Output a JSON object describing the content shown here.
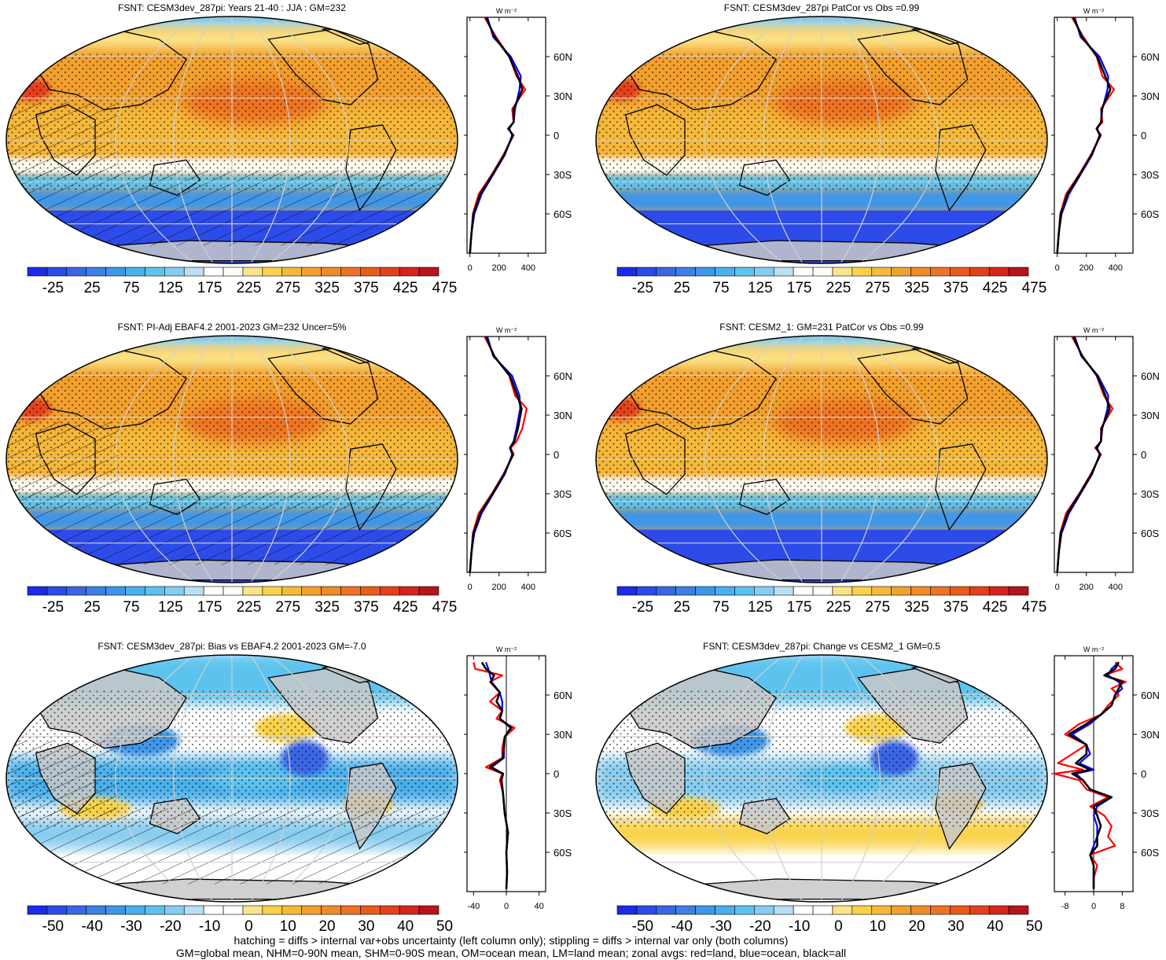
{
  "panels": [
    {
      "title": "FSNT: CESM3dev_287pi: Years 21-40 : JJA : GM=232",
      "kind": "abs",
      "hatch": true,
      "colorbar": {
        "labels": [
          "-25",
          "25",
          "75",
          "125",
          "175",
          "225",
          "275",
          "325",
          "375",
          "425",
          "475"
        ]
      },
      "profile": {
        "xticks": [
          "0",
          "200",
          "400"
        ],
        "xmin": -20,
        "xmax": 520,
        "units": "W m⁻²",
        "lat": [
          90,
          75,
          60,
          45,
          35,
          20,
          10,
          5,
          0,
          -15,
          -30,
          -45,
          -60,
          -75,
          -90
        ],
        "land": [
          100,
          180,
          270,
          320,
          380,
          290,
          300,
          260,
          300,
          230,
          150,
          60,
          20,
          10,
          0
        ],
        "ocean": [
          120,
          160,
          280,
          350,
          340,
          310,
          300,
          270,
          290,
          240,
          160,
          80,
          30,
          10,
          0
        ],
        "all": [
          110,
          170,
          270,
          330,
          360,
          300,
          300,
          265,
          295,
          235,
          155,
          70,
          25,
          10,
          0
        ]
      }
    },
    {
      "title": "FSNT: CESM3dev_287pi PatCor vs Obs =0.99",
      "kind": "abs",
      "hatch": false,
      "colorbar": {
        "labels": [
          "-25",
          "25",
          "75",
          "125",
          "175",
          "225",
          "275",
          "325",
          "375",
          "425",
          "475"
        ]
      },
      "profile": {
        "xticks": [
          "0",
          "200",
          "400"
        ],
        "xmin": -20,
        "xmax": 520,
        "units": "W m⁻²",
        "lat": [
          90,
          75,
          60,
          45,
          35,
          20,
          10,
          5,
          0,
          -15,
          -30,
          -45,
          -60,
          -75,
          -90
        ],
        "land": [
          100,
          180,
          270,
          310,
          390,
          300,
          310,
          270,
          300,
          230,
          150,
          60,
          20,
          10,
          0
        ],
        "ocean": [
          120,
          160,
          290,
          350,
          345,
          310,
          300,
          275,
          290,
          240,
          160,
          80,
          30,
          10,
          0
        ],
        "all": [
          110,
          170,
          275,
          330,
          365,
          305,
          302,
          270,
          295,
          235,
          155,
          70,
          25,
          10,
          0
        ]
      }
    },
    {
      "title": "FSNT: PI-Adj EBAF4.2 2001-2023 GM=232 Uncer=5%",
      "kind": "abs",
      "hatch": true,
      "colorbar": {
        "labels": [
          "-25",
          "25",
          "75",
          "125",
          "175",
          "225",
          "275",
          "325",
          "375",
          "425",
          "475"
        ]
      },
      "profile": {
        "xticks": [
          "0",
          "200",
          "400"
        ],
        "xmin": -20,
        "xmax": 520,
        "units": "W m⁻²",
        "lat": [
          90,
          75,
          60,
          45,
          35,
          20,
          10,
          5,
          0,
          -15,
          -30,
          -45,
          -60,
          -75,
          -90
        ],
        "land": [
          100,
          170,
          270,
          310,
          390,
          360,
          320,
          280,
          300,
          230,
          150,
          60,
          20,
          10,
          0
        ],
        "ocean": [
          120,
          160,
          290,
          340,
          345,
          320,
          300,
          275,
          290,
          240,
          160,
          80,
          30,
          10,
          0
        ],
        "all": [
          110,
          165,
          275,
          325,
          355,
          330,
          305,
          275,
          295,
          235,
          155,
          70,
          25,
          10,
          0
        ]
      }
    },
    {
      "title": "FSNT: CESM2_1: GM=231 PatCor vs Obs =0.99",
      "kind": "abs",
      "hatch": false,
      "colorbar": {
        "labels": [
          "-25",
          "25",
          "75",
          "125",
          "175",
          "225",
          "275",
          "325",
          "375",
          "425",
          "475"
        ]
      },
      "profile": {
        "xticks": [
          "0",
          "200",
          "400"
        ],
        "xmin": -20,
        "xmax": 520,
        "units": "W m⁻²",
        "lat": [
          90,
          75,
          60,
          45,
          35,
          20,
          10,
          5,
          0,
          -15,
          -30,
          -45,
          -60,
          -75,
          -90
        ],
        "land": [
          100,
          175,
          270,
          320,
          380,
          300,
          300,
          260,
          300,
          230,
          150,
          60,
          20,
          10,
          0
        ],
        "ocean": [
          120,
          165,
          280,
          350,
          345,
          310,
          300,
          275,
          290,
          240,
          160,
          80,
          30,
          10,
          0
        ],
        "all": [
          110,
          170,
          275,
          330,
          360,
          305,
          300,
          268,
          295,
          235,
          155,
          70,
          25,
          10,
          0
        ]
      }
    },
    {
      "title": "FSNT: CESM3dev_287pi: Bias vs EBAF4.2 2001-2023 GM=-7.0",
      "kind": "diff",
      "hatch": true,
      "colorbar": {
        "labels": [
          "-50",
          "-40",
          "-30",
          "-20",
          "-10",
          "0",
          "10",
          "20",
          "30",
          "40",
          "50"
        ]
      },
      "profile": {
        "xticks": [
          "-40",
          "0",
          "40"
        ],
        "xmin": -48,
        "xmax": 48,
        "units": "W m⁻²",
        "lat": [
          85,
          80,
          75,
          70,
          62,
          55,
          48,
          42,
          35,
          28,
          20,
          12,
          5,
          0,
          -5,
          -15,
          -30,
          -45,
          -60,
          -75,
          -88
        ],
        "land": [
          -40,
          -38,
          -5,
          -20,
          -8,
          -20,
          -5,
          -12,
          10,
          -2,
          -5,
          -5,
          -25,
          -5,
          -8,
          -4,
          -2,
          2,
          0,
          1,
          0
        ],
        "ocean": [
          -25,
          -22,
          -20,
          -18,
          -8,
          -5,
          -5,
          -8,
          5,
          -2,
          -3,
          -3,
          -18,
          -4,
          -6,
          -4,
          -2,
          2,
          0,
          1,
          0
        ],
        "all": [
          -30,
          -25,
          -15,
          -19,
          -8,
          -12,
          -5,
          -8,
          6,
          -2,
          -3,
          -4,
          -20,
          -4,
          -6,
          -4,
          -2,
          2,
          0,
          1,
          0
        ]
      }
    },
    {
      "title": "FSNT: CESM3dev_287pi: Change vs CESM2_1 GM=0.5",
      "kind": "diff",
      "hatch": false,
      "colorbar": {
        "labels": [
          "-50",
          "-40",
          "-30",
          "-20",
          "-10",
          "0",
          "10",
          "20",
          "30",
          "40",
          "50"
        ]
      },
      "profile": {
        "xticks": [
          "-8",
          "0",
          "8"
        ],
        "xmin": -11,
        "xmax": 11,
        "units": "W m⁻²",
        "lat": [
          85,
          80,
          75,
          70,
          65,
          60,
          52,
          45,
          38,
          30,
          22,
          15,
          8,
          3,
          0,
          -5,
          -12,
          -18,
          -25,
          -32,
          -40,
          -48,
          -55,
          -62,
          -70,
          -80,
          -88
        ],
        "land": [
          6,
          8,
          3,
          9,
          5,
          7,
          4,
          2,
          -4,
          -8,
          -2,
          -6,
          -10,
          -3,
          -11,
          -4,
          -2,
          4,
          -1,
          3,
          5,
          4,
          6,
          -1,
          1,
          0,
          0
        ],
        "ocean": [
          7,
          5,
          4,
          7,
          8,
          6,
          5,
          2,
          -1,
          -6,
          -2,
          -1,
          -4,
          0,
          -5,
          -3,
          -1,
          5,
          1,
          0,
          1,
          1,
          0,
          -1,
          0,
          0,
          0
        ],
        "all": [
          7,
          6,
          3,
          8,
          7,
          6,
          5,
          2,
          -2,
          -7,
          -2,
          -2,
          -5,
          -1,
          -6,
          -3,
          -1,
          5,
          0,
          1,
          2,
          1,
          1,
          -1,
          0,
          0,
          0
        ]
      }
    }
  ],
  "lat_ticks": [
    "60N",
    "30N",
    "0",
    "30S",
    "60S"
  ],
  "abs_colors": [
    "#1b2be6",
    "#2d4be8",
    "#3a66e6",
    "#3e7fe6",
    "#3f96e8",
    "#48b0ec",
    "#5cc3ef",
    "#86ccf0",
    "#b9dff3",
    "#ffffff",
    "#fffdf5",
    "#fbe489",
    "#f9d24a",
    "#f6b93a",
    "#f3a02f",
    "#f18b28",
    "#ee7322",
    "#ea5b1e",
    "#e4401c",
    "#d6241c",
    "#b5141c"
  ],
  "diff_colors": [
    "#1b2be6",
    "#2d4be8",
    "#3a66e6",
    "#3e7fe6",
    "#3f96e8",
    "#48b0ec",
    "#5cc3ef",
    "#86ccf0",
    "#b9dff3",
    "#ffffff",
    "#ffffff",
    "#fbe489",
    "#f9d24a",
    "#f6b93a",
    "#f3a02f",
    "#f18b28",
    "#ee7322",
    "#ea5b1e",
    "#e4401c",
    "#d6241c",
    "#b5141c"
  ],
  "line_colors": {
    "land": "#ff0000",
    "ocean": "#0000ff",
    "all": "#000000"
  },
  "footer": [
    "hatching = diffs > internal var+obs uncertainty (left column only); stippling = diffs > internal var only (both columns)",
    "GM=global mean, NHM=0-90N mean, SHM=0-90S mean, OM=ocean mean, LM=land mean; zonal avgs: red=land, blue=ocean, black=all"
  ]
}
